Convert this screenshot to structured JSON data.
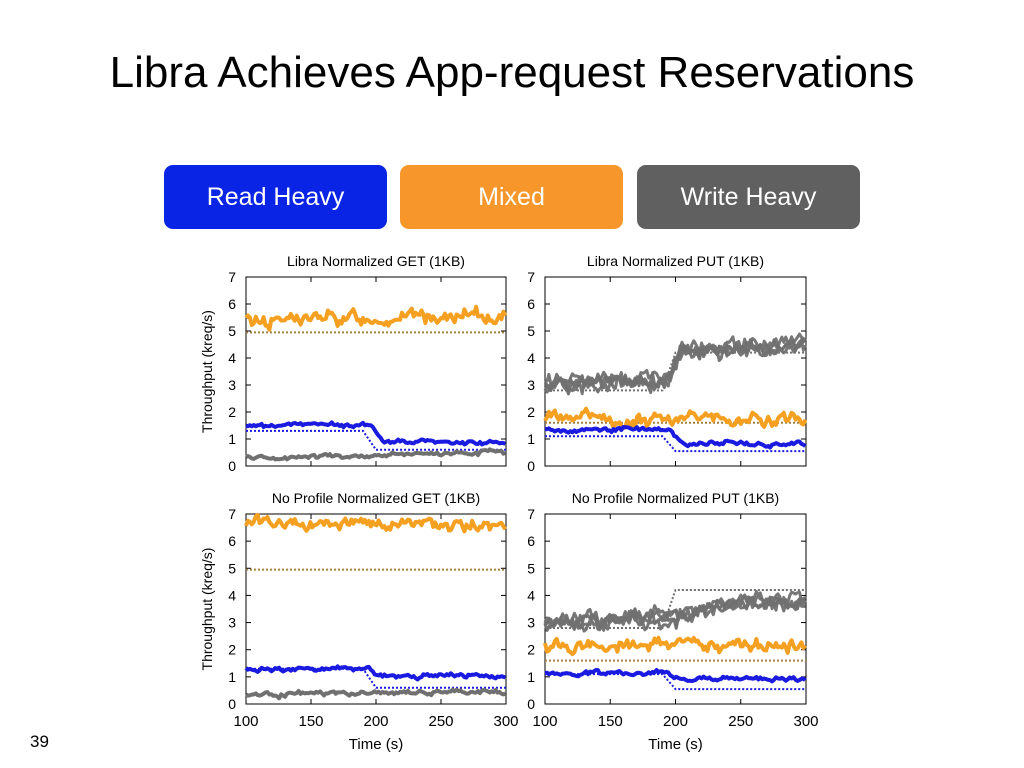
{
  "slide": {
    "title": "Libra Achieves App-request Reservations",
    "page_number": "39"
  },
  "legend": [
    {
      "label": "Read Heavy",
      "color": "#0a24e6"
    },
    {
      "label": "Mixed",
      "color": "#f7972b"
    },
    {
      "label": "Write Heavy",
      "color": "#606060"
    }
  ],
  "colors": {
    "read_heavy": "#1a1ae0",
    "mixed": "#f5a020",
    "write_heavy": "#707070"
  },
  "chart_data": [
    {
      "type": "line",
      "title": "Libra Normalized GET (1KB)",
      "ylabel": "Throughput (kreq/s)",
      "xlabel": "",
      "xlim": [
        100,
        300
      ],
      "ylim": [
        0,
        7
      ],
      "xticks": [],
      "yticks": [
        0,
        1,
        2,
        3,
        4,
        5,
        6,
        7
      ],
      "series": [
        {
          "color_key": "mixed",
          "x": [
            100,
            200,
            300
          ],
          "y": [
            5.4,
            5.5,
            5.5
          ],
          "reservation": [
            [
              100,
              4.95
            ],
            [
              300,
              4.95
            ]
          ]
        },
        {
          "color_key": "read_heavy",
          "x": [
            100,
            195,
            205,
            300
          ],
          "y": [
            1.5,
            1.55,
            0.9,
            0.85
          ],
          "reservation": [
            [
              100,
              1.3
            ],
            [
              190,
              1.3
            ],
            [
              200,
              0.6
            ],
            [
              300,
              0.6
            ]
          ]
        },
        {
          "color_key": "write_heavy",
          "x": [
            100,
            200,
            300
          ],
          "y": [
            0.3,
            0.4,
            0.5
          ]
        }
      ]
    },
    {
      "type": "line",
      "title": "Libra Normalized PUT (1KB)",
      "ylabel": "",
      "xlabel": "",
      "xlim": [
        100,
        300
      ],
      "ylim": [
        0,
        7
      ],
      "xticks": [],
      "yticks": [
        0,
        1,
        2,
        3,
        4,
        5,
        6,
        7
      ],
      "series": [
        {
          "color_key": "write_heavy",
          "x": [
            100,
            195,
            205,
            300
          ],
          "y": [
            3.0,
            3.2,
            4.2,
            4.5
          ],
          "reservation": [
            [
              100,
              2.8
            ],
            [
              190,
              2.8
            ],
            [
              200,
              4.2
            ],
            [
              300,
              4.2
            ]
          ],
          "lines": 4
        },
        {
          "color_key": "mixed",
          "x": [
            100,
            200,
            300
          ],
          "y": [
            1.75,
            1.75,
            1.75
          ],
          "reservation": [
            [
              100,
              1.6
            ],
            [
              300,
              1.6
            ]
          ]
        },
        {
          "color_key": "read_heavy",
          "x": [
            100,
            195,
            205,
            300
          ],
          "y": [
            1.35,
            1.35,
            0.85,
            0.8
          ],
          "reservation": [
            [
              100,
              1.1
            ],
            [
              190,
              1.1
            ],
            [
              200,
              0.55
            ],
            [
              300,
              0.55
            ]
          ]
        }
      ]
    },
    {
      "type": "line",
      "title": "No Profile Normalized GET (1KB)",
      "ylabel": "Throughput (kreq/s)",
      "xlabel": "Time (s)",
      "xlim": [
        100,
        300
      ],
      "ylim": [
        0,
        7
      ],
      "xticks": [
        100,
        150,
        200,
        250,
        300
      ],
      "yticks": [
        0,
        1,
        2,
        3,
        4,
        5,
        6,
        7
      ],
      "series": [
        {
          "color_key": "mixed",
          "x": [
            100,
            200,
            300
          ],
          "y": [
            6.6,
            6.7,
            6.6
          ],
          "reservation": [
            [
              100,
              4.95
            ],
            [
              300,
              4.95
            ]
          ]
        },
        {
          "color_key": "read_heavy",
          "x": [
            100,
            195,
            205,
            300
          ],
          "y": [
            1.3,
            1.3,
            1.0,
            1.05
          ],
          "reservation": [
            [
              100,
              1.3
            ],
            [
              190,
              1.3
            ],
            [
              200,
              0.6
            ],
            [
              300,
              0.6
            ]
          ]
        },
        {
          "color_key": "write_heavy",
          "x": [
            100,
            200,
            300
          ],
          "y": [
            0.35,
            0.4,
            0.45
          ]
        }
      ]
    },
    {
      "type": "line",
      "title": "No Profile Normalized PUT (1KB)",
      "ylabel": "",
      "xlabel": "Time (s)",
      "xlim": [
        100,
        300
      ],
      "ylim": [
        0,
        7
      ],
      "xticks": [
        100,
        150,
        200,
        250,
        300
      ],
      "yticks": [
        0,
        1,
        2,
        3,
        4,
        5,
        6,
        7
      ],
      "series": [
        {
          "color_key": "write_heavy",
          "x": [
            100,
            200,
            250,
            300
          ],
          "y": [
            3.0,
            3.2,
            3.8,
            3.8
          ],
          "reservation": [
            [
              100,
              2.8
            ],
            [
              190,
              2.8
            ],
            [
              200,
              4.2
            ],
            [
              300,
              4.2
            ]
          ],
          "lines": 4
        },
        {
          "color_key": "mixed",
          "x": [
            100,
            200,
            300
          ],
          "y": [
            2.2,
            2.2,
            2.1
          ],
          "reservation": [
            [
              100,
              1.6
            ],
            [
              300,
              1.6
            ]
          ]
        },
        {
          "color_key": "read_heavy",
          "x": [
            100,
            195,
            205,
            300
          ],
          "y": [
            1.15,
            1.15,
            0.95,
            0.95
          ],
          "reservation": [
            [
              100,
              1.1
            ],
            [
              190,
              1.1
            ],
            [
              200,
              0.55
            ],
            [
              300,
              0.55
            ]
          ]
        }
      ]
    }
  ]
}
